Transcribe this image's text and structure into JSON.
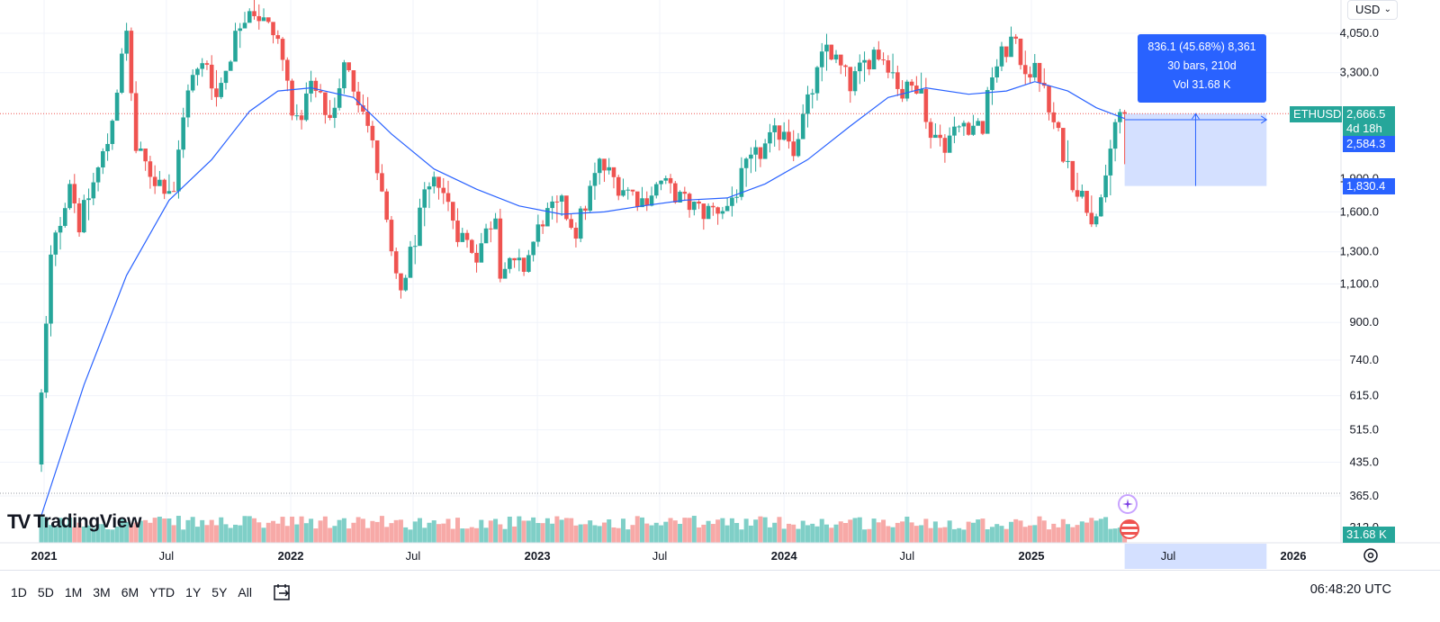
{
  "header": {
    "currency": "USD"
  },
  "branding": {
    "logo_text": "TradingView"
  },
  "measure_tooltip": {
    "line1": "836.1 (45.68%) 8,361",
    "line2": "30 bars, 210d",
    "line3": "Vol 31.68 K"
  },
  "price_tags": {
    "symbol": "ETHUSD",
    "last_price": "2,666.5",
    "countdown": "4d 18h",
    "measure_mid": "2,584.3",
    "measure_low": "1,830.4",
    "volume": "31.68 K",
    "partial_label": "1,900.0",
    "partial_label_low": "312.0"
  },
  "time_axis_extra": {
    "future_month": "Jul",
    "future_year": "2026"
  },
  "bottom_bar": {
    "ranges": [
      "1D",
      "5D",
      "1M",
      "3M",
      "6M",
      "YTD",
      "1Y",
      "5Y",
      "All"
    ],
    "clock": "06:48:20 UTC"
  },
  "colors": {
    "up": "#26a69a",
    "down": "#ef5350",
    "ma": "#2962ff",
    "accent": "#2962ff",
    "vol_up": "#7fcfc7",
    "vol_down": "#f7a9a7"
  },
  "chart_data": {
    "type": "candlestick",
    "symbol": "ETHUSD",
    "interval": "1W",
    "scale": "log",
    "y_ticks": [
      "4,050.0",
      "3,300.0",
      "1,600.0",
      "1,300.0",
      "1,100.0",
      "900.0",
      "740.0",
      "615.0",
      "515.0",
      "435.0",
      "365.0"
    ],
    "x_ticks": [
      {
        "label": "2021",
        "date": "2021-01-01",
        "major": true
      },
      {
        "label": "Jul",
        "date": "2021-07-01",
        "major": false
      },
      {
        "label": "2022",
        "date": "2022-01-01",
        "major": true
      },
      {
        "label": "Jul",
        "date": "2022-07-01",
        "major": false
      },
      {
        "label": "2023",
        "date": "2023-01-01",
        "major": true
      },
      {
        "label": "Jul",
        "date": "2023-07-01",
        "major": false
      },
      {
        "label": "2024",
        "date": "2024-01-01",
        "major": true
      },
      {
        "label": "Jul",
        "date": "2024-07-01",
        "major": false
      },
      {
        "label": "2025",
        "date": "2025-01-01",
        "major": true
      }
    ],
    "price_path": [
      [
        "2020-12-28",
        430
      ],
      [
        "2021-01-18",
        1250
      ],
      [
        "2021-02-15",
        1900
      ],
      [
        "2021-03-01",
        1500
      ],
      [
        "2021-04-12",
        2300
      ],
      [
        "2021-05-10",
        4050
      ],
      [
        "2021-05-24",
        2200
      ],
      [
        "2021-06-21",
        1900
      ],
      [
        "2021-07-19",
        1800
      ],
      [
        "2021-08-09",
        3100
      ],
      [
        "2021-09-06",
        3500
      ],
      [
        "2021-09-20",
        2900
      ],
      [
        "2021-10-25",
        4300
      ],
      [
        "2021-11-08",
        4700
      ],
      [
        "2021-11-29",
        4300
      ],
      [
        "2021-12-20",
        3900
      ],
      [
        "2022-01-17",
        2500
      ],
      [
        "2022-02-07",
        3100
      ],
      [
        "2022-03-07",
        2600
      ],
      [
        "2022-03-28",
        3400
      ],
      [
        "2022-04-25",
        2800
      ],
      [
        "2022-05-16",
        2000
      ],
      [
        "2022-06-13",
        1100
      ],
      [
        "2022-06-20",
        1060
      ],
      [
        "2022-07-25",
        1700
      ],
      [
        "2022-08-15",
        1900
      ],
      [
        "2022-09-12",
        1450
      ],
      [
        "2022-10-10",
        1290
      ],
      [
        "2022-11-07",
        1600
      ],
      [
        "2022-11-14",
        1200
      ],
      [
        "2022-12-19",
        1200
      ],
      [
        "2023-01-16",
        1550
      ],
      [
        "2023-02-13",
        1650
      ],
      [
        "2023-03-06",
        1450
      ],
      [
        "2023-04-10",
        2050
      ],
      [
        "2023-05-08",
        1850
      ],
      [
        "2023-06-12",
        1700
      ],
      [
        "2023-07-10",
        1870
      ],
      [
        "2023-08-14",
        1680
      ],
      [
        "2023-09-11",
        1600
      ],
      [
        "2023-10-16",
        1650
      ],
      [
        "2023-10-30",
        1800
      ],
      [
        "2023-11-13",
        2000
      ],
      [
        "2023-12-11",
        2250
      ],
      [
        "2024-01-08",
        2500
      ],
      [
        "2024-01-22",
        2250
      ],
      [
        "2024-02-12",
        2800
      ],
      [
        "2024-03-11",
        3800
      ],
      [
        "2024-04-15",
        3100
      ],
      [
        "2024-05-20",
        3700
      ],
      [
        "2024-06-10",
        3500
      ],
      [
        "2024-07-01",
        2950
      ],
      [
        "2024-07-29",
        3200
      ],
      [
        "2024-08-05",
        2500
      ],
      [
        "2024-09-02",
        2300
      ],
      [
        "2024-09-30",
        2550
      ],
      [
        "2024-10-28",
        2500
      ],
      [
        "2024-11-11",
        3300
      ],
      [
        "2024-12-09",
        3900
      ],
      [
        "2024-12-30",
        3400
      ],
      [
        "2025-01-20",
        3250
      ],
      [
        "2025-02-03",
        2700
      ],
      [
        "2025-02-24",
        2200
      ],
      [
        "2025-03-10",
        1900
      ],
      [
        "2025-04-07",
        1580
      ],
      [
        "2025-04-28",
        1830
      ],
      [
        "2025-05-12",
        2550
      ],
      [
        "2025-05-19",
        2666
      ]
    ],
    "moving_average": [
      [
        "2020-12-28",
        330
      ],
      [
        "2021-03-01",
        650
      ],
      [
        "2021-05-03",
        1150
      ],
      [
        "2021-07-05",
        1700
      ],
      [
        "2021-09-06",
        2100
      ],
      [
        "2021-11-01",
        2700
      ],
      [
        "2021-12-13",
        3000
      ],
      [
        "2022-01-31",
        3050
      ],
      [
        "2022-04-04",
        2900
      ],
      [
        "2022-05-30",
        2400
      ],
      [
        "2022-08-01",
        2000
      ],
      [
        "2022-10-03",
        1800
      ],
      [
        "2022-12-05",
        1650
      ],
      [
        "2023-02-06",
        1580
      ],
      [
        "2023-04-10",
        1600
      ],
      [
        "2023-06-05",
        1650
      ],
      [
        "2023-08-07",
        1700
      ],
      [
        "2023-10-09",
        1720
      ],
      [
        "2023-12-04",
        1850
      ],
      [
        "2024-02-05",
        2100
      ],
      [
        "2024-04-08",
        2500
      ],
      [
        "2024-06-03",
        2900
      ],
      [
        "2024-07-29",
        3050
      ],
      [
        "2024-09-30",
        2950
      ],
      [
        "2024-11-25",
        3000
      ],
      [
        "2025-01-06",
        3150
      ],
      [
        "2025-02-24",
        3000
      ],
      [
        "2025-04-07",
        2750
      ],
      [
        "2025-05-19",
        2600
      ]
    ],
    "last_price": 2666.5,
    "measure_range": {
      "from_price": 1830.4,
      "to_price": 2666.5,
      "change": 836.1,
      "pct": 45.68,
      "bars": 30,
      "days": 210
    },
    "ylabel": "",
    "xlabel": "",
    "title": ""
  }
}
